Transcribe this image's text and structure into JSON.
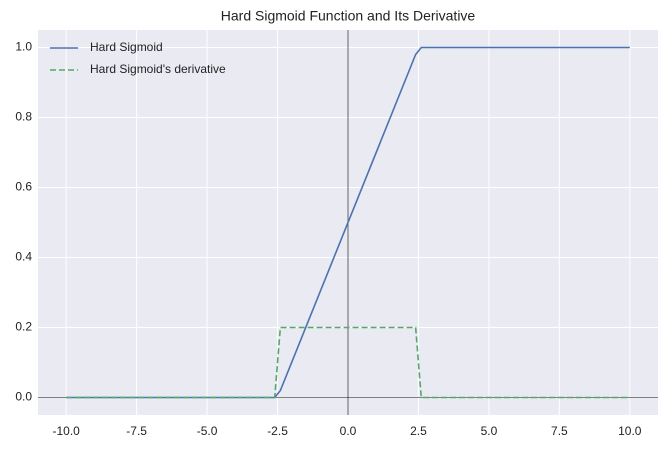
{
  "chart_data": {
    "type": "line",
    "title": "Hard Sigmoid Function and Its Derivative",
    "x": [
      -10,
      -2.6,
      -2.4,
      2.4,
      2.6,
      10
    ],
    "series": [
      {
        "name": "Hard Sigmoid",
        "color": "#4c72b0",
        "dash": "solid",
        "values": [
          0,
          0,
          0.02,
          0.98,
          1,
          1
        ]
      },
      {
        "name": "Hard Sigmoid's derivative",
        "color": "#55a868",
        "dash": "dashed",
        "values": [
          0,
          0,
          0.2,
          0.2,
          0,
          0
        ]
      }
    ],
    "xlim": [
      -11,
      11
    ],
    "ylim": [
      -0.05,
      1.05
    ],
    "xticks": [
      {
        "value": -10,
        "label": "-10.0"
      },
      -7.5,
      {
        "value": -5,
        "label": "-5.0"
      },
      -2.5,
      {
        "value": 0,
        "label": "0.0"
      },
      2.5,
      {
        "value": 5,
        "label": "5.0"
      },
      7.5,
      {
        "value": 10,
        "label": "10.0"
      }
    ],
    "yticks": [
      {
        "value": 0,
        "label": "0.0"
      },
      0.2,
      0.4,
      0.6,
      0.8,
      {
        "value": 1,
        "label": "1.0"
      }
    ],
    "grid": true,
    "legend": "upper left"
  }
}
